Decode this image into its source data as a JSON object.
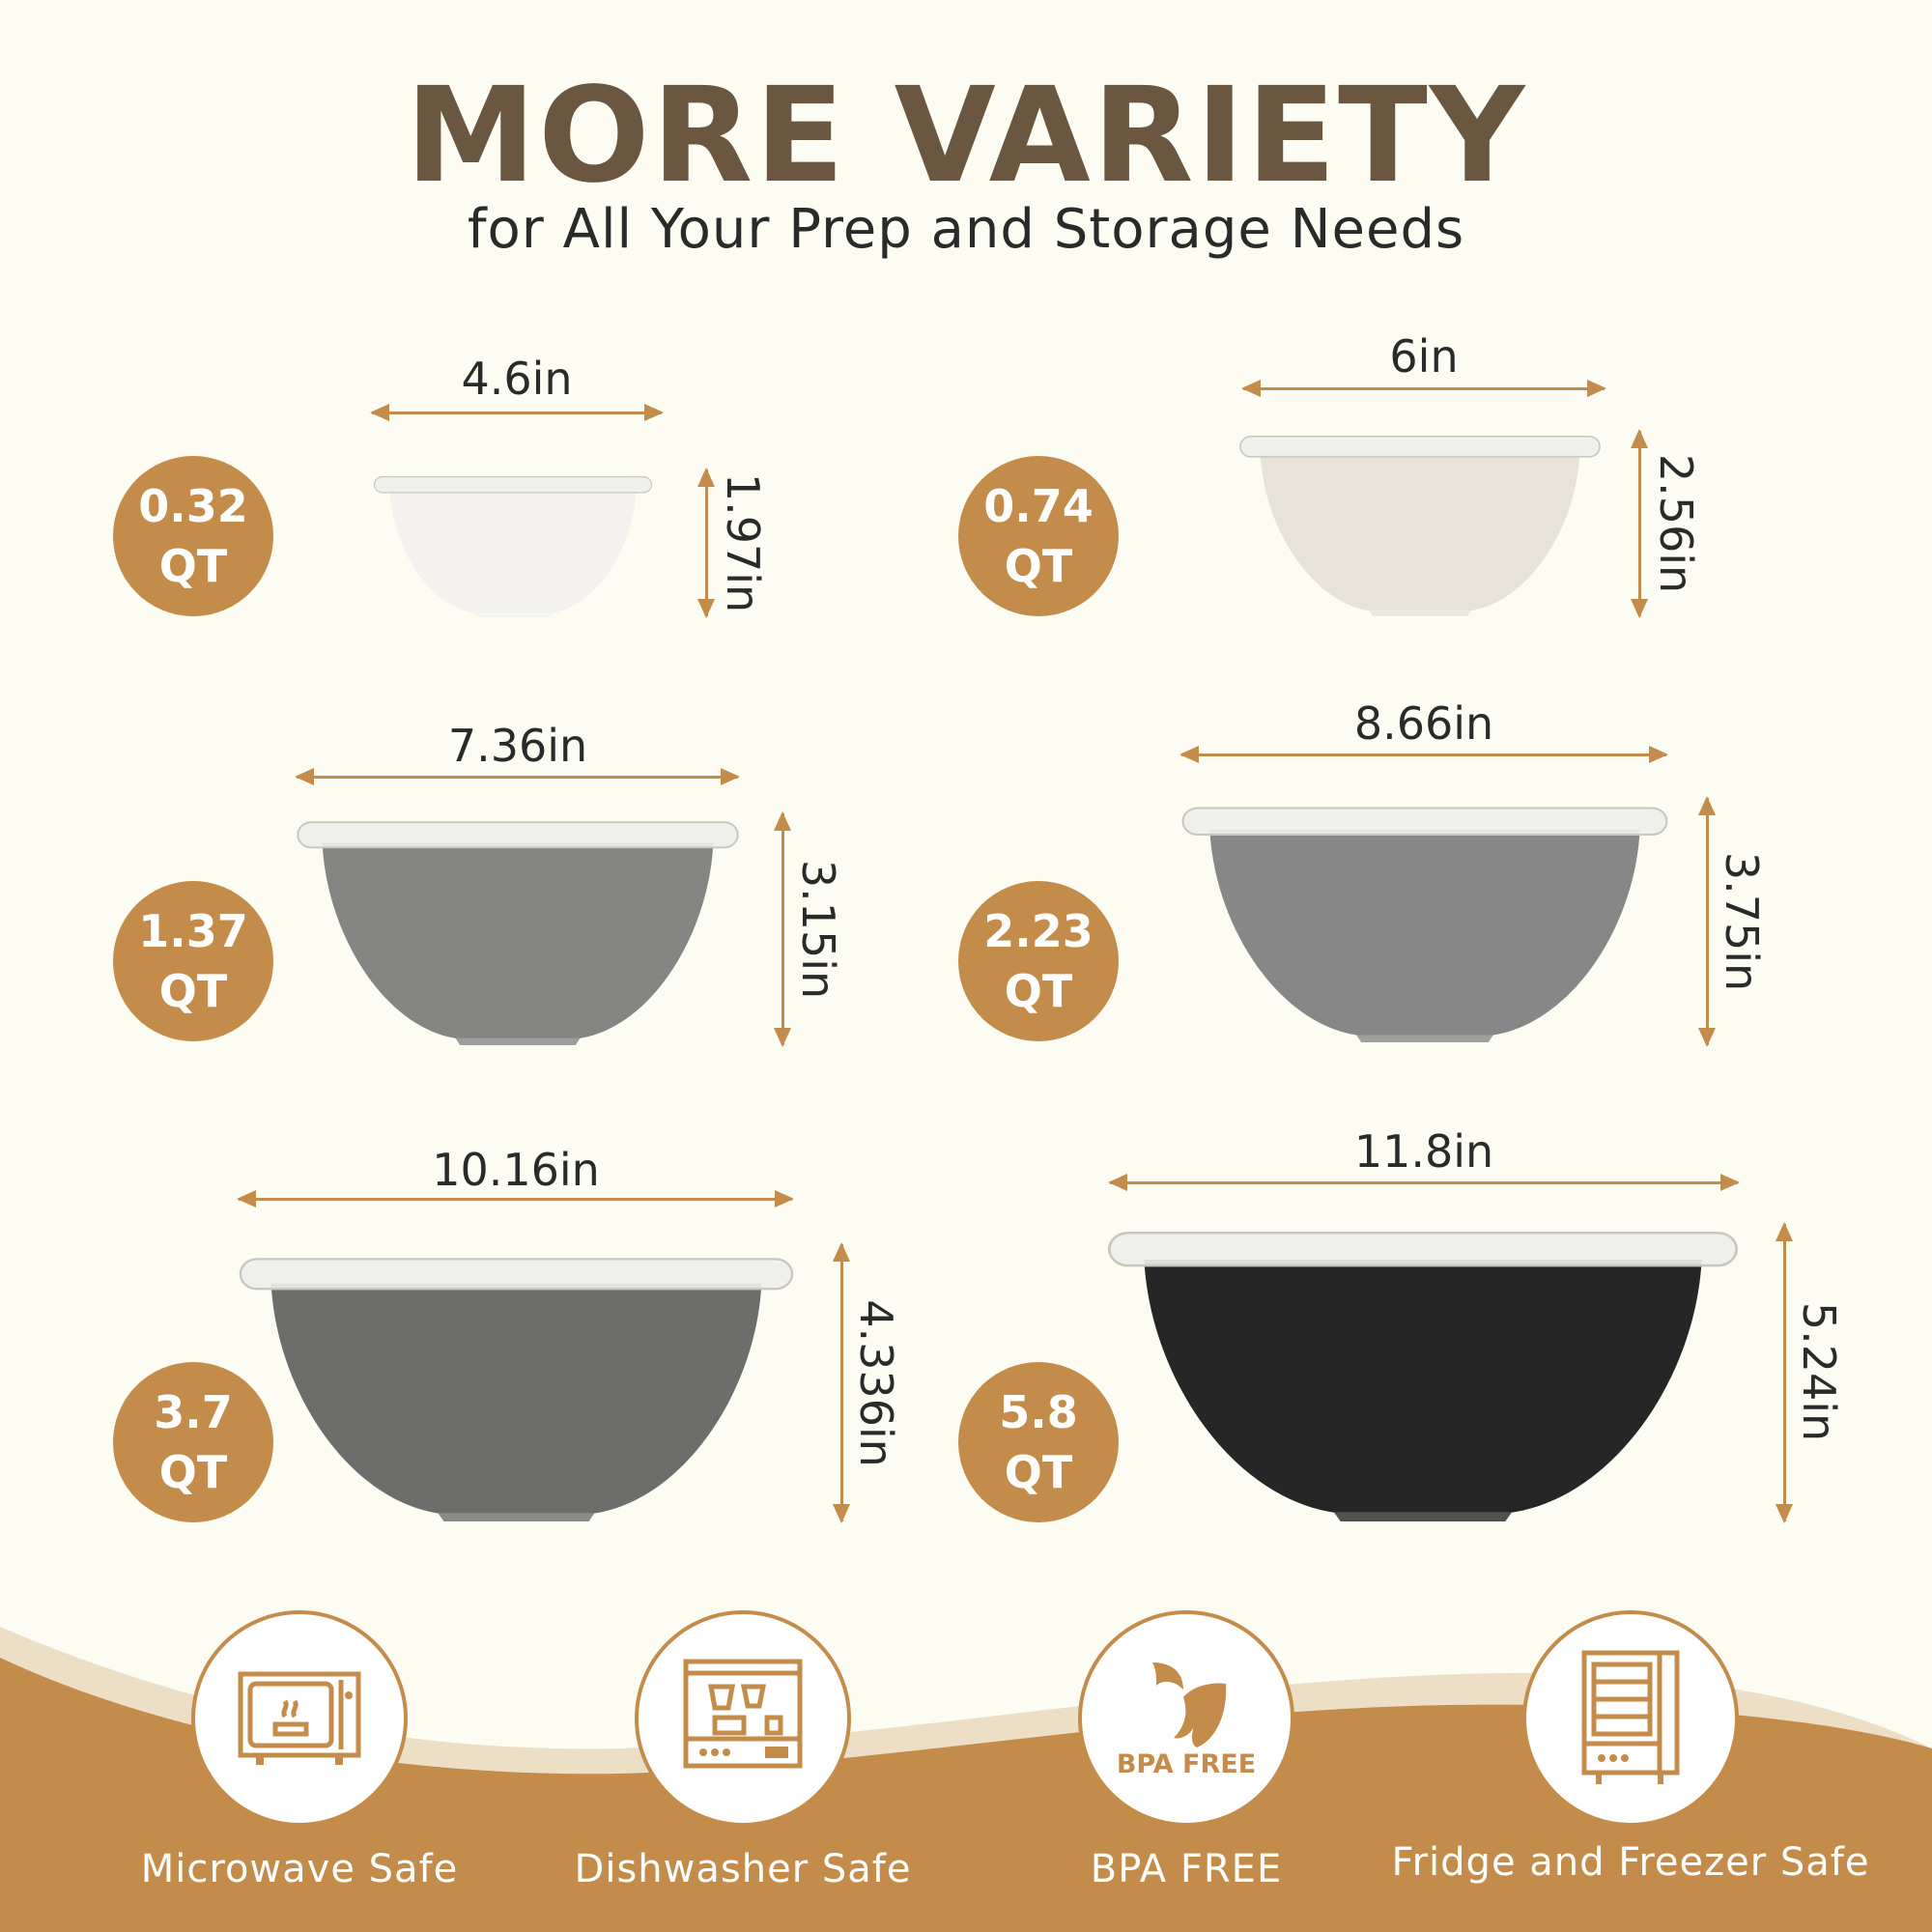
{
  "header": {
    "title": "MORE VARIETY",
    "subtitle": "for All Your Prep and Storage Needs"
  },
  "bowls": [
    {
      "capacity": "0.32",
      "unit": "QT",
      "width": "4.6in",
      "height": "1.97in",
      "color": "#f3f2ee"
    },
    {
      "capacity": "0.74",
      "unit": "QT",
      "width": "6in",
      "height": "2.56in",
      "color": "#e7e3da"
    },
    {
      "capacity": "1.37",
      "unit": "QT",
      "width": "7.36in",
      "height": "3.15in",
      "color": "#858584"
    },
    {
      "capacity": "2.23",
      "unit": "QT",
      "width": "8.66in",
      "height": "3.75in",
      "color": "#878787"
    },
    {
      "capacity": "3.7",
      "unit": "QT",
      "width": "10.16in",
      "height": "4.336in",
      "color": "#6d6d6b"
    },
    {
      "capacity": "5.8",
      "unit": "QT",
      "width": "11.8in",
      "height": "5.24in",
      "color": "#262626"
    }
  ],
  "features": [
    {
      "label": "Microwave Safe",
      "icon": "microwave-icon"
    },
    {
      "label": "Dishwasher Safe",
      "icon": "dishwasher-icon"
    },
    {
      "label": "BPA FREE",
      "icon": "bpa-free-leaf-icon",
      "badge_text": "BPA FREE"
    },
    {
      "label": "Fridge and Freezer Safe",
      "icon": "fridge-icon"
    }
  ],
  "colors": {
    "accent": "#c48c4b",
    "title": "#6b5740",
    "background": "#fdfcf2",
    "wave_light": "#ecdfc6"
  }
}
